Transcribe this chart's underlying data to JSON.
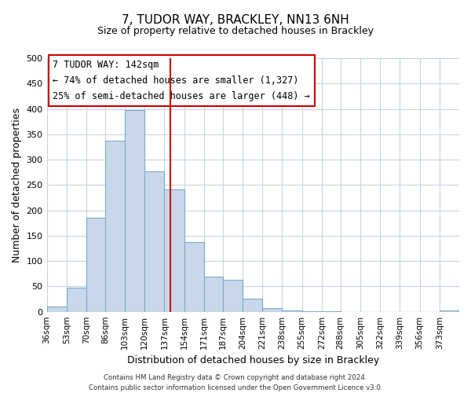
{
  "title": "7, TUDOR WAY, BRACKLEY, NN13 6NH",
  "subtitle": "Size of property relative to detached houses in Brackley",
  "xlabel": "Distribution of detached houses by size in Brackley",
  "ylabel": "Number of detached properties",
  "bar_color": "#c8d8ea",
  "bar_edge_color": "#7aaac8",
  "vline_x": 142,
  "vline_color": "#cc0000",
  "categories": [
    "36sqm",
    "53sqm",
    "70sqm",
    "86sqm",
    "103sqm",
    "120sqm",
    "137sqm",
    "154sqm",
    "171sqm",
    "187sqm",
    "204sqm",
    "221sqm",
    "238sqm",
    "255sqm",
    "272sqm",
    "288sqm",
    "305sqm",
    "322sqm",
    "339sqm",
    "356sqm",
    "373sqm"
  ],
  "bin_edges": [
    36,
    53,
    70,
    86,
    103,
    120,
    137,
    154,
    171,
    187,
    204,
    221,
    238,
    255,
    272,
    288,
    305,
    322,
    339,
    356,
    373,
    390
  ],
  "values": [
    10,
    47,
    185,
    338,
    398,
    277,
    241,
    137,
    70,
    63,
    26,
    8,
    3,
    1,
    1,
    0,
    0,
    0,
    0,
    0,
    2
  ],
  "ylim": [
    0,
    500
  ],
  "yticks": [
    0,
    50,
    100,
    150,
    200,
    250,
    300,
    350,
    400,
    450,
    500
  ],
  "annotation_title": "7 TUDOR WAY: 142sqm",
  "annotation_line1": "← 74% of detached houses are smaller (1,327)",
  "annotation_line2": "25% of semi-detached houses are larger (448) →",
  "footer_line1": "Contains HM Land Registry data © Crown copyright and database right 2024.",
  "footer_line2": "Contains public sector information licensed under the Open Government Licence v3.0.",
  "background_color": "#ffffff",
  "grid_color": "#c8d4e0"
}
